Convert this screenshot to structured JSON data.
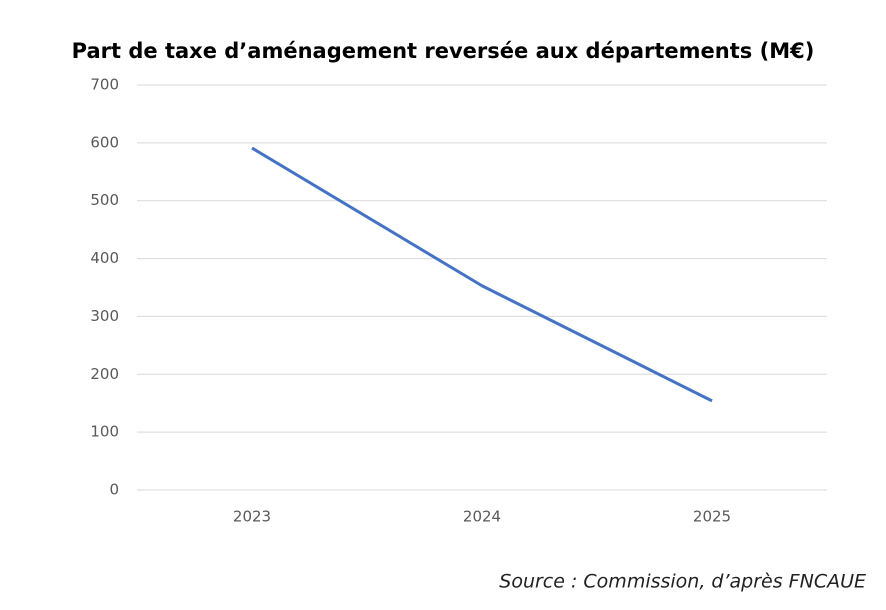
{
  "chart_data": {
    "type": "line",
    "title": "Part de taxe d’aménagement reversée aux départements (M€)",
    "categories": [
      "2023",
      "2024",
      "2025"
    ],
    "series": [
      {
        "name": "Part de taxe d’aménagement",
        "color": "#4472c4",
        "values": [
          591,
          353,
          154
        ]
      }
    ],
    "ylim": [
      0,
      700
    ],
    "yticks": [
      0,
      100,
      200,
      300,
      400,
      500,
      600,
      700
    ],
    "grid": true,
    "source": "Source : Commission, d’après FNCAUE"
  }
}
